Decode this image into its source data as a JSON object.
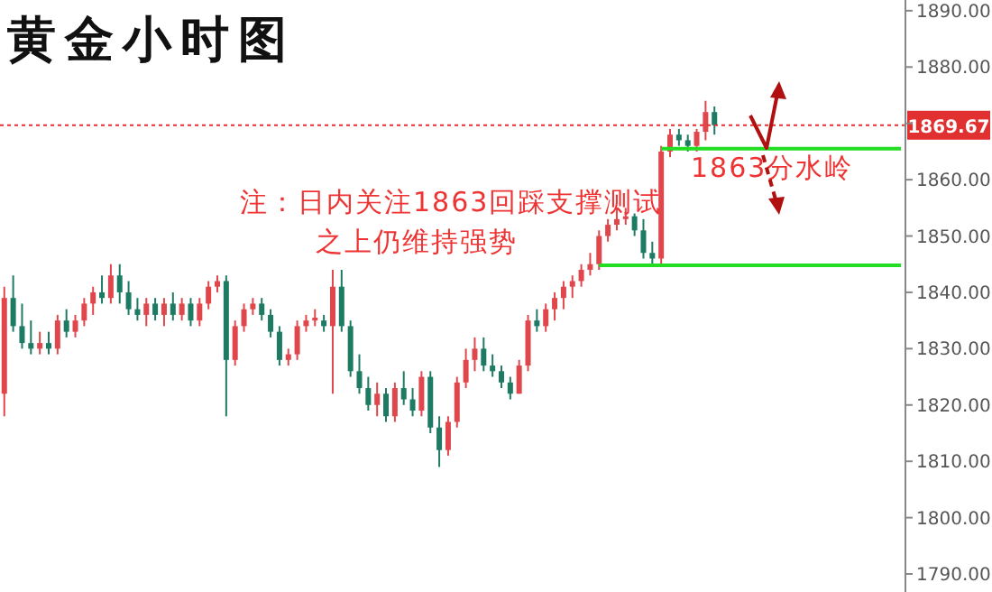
{
  "chart_data": {
    "type": "candlestick",
    "title": "黄金小时图",
    "annotations": [
      "注：日内关注1863回踩支撑测试",
      "之上仍维持强势",
      "1863分水岭"
    ],
    "categories": [
      null,
      null,
      null,
      null,
      null,
      null,
      null,
      null,
      null,
      null,
      null,
      null,
      null,
      null,
      null,
      null,
      null,
      null,
      null,
      null,
      null,
      null,
      null,
      null,
      null,
      null,
      null,
      null,
      null,
      null,
      null,
      null,
      null,
      null,
      null,
      null,
      null,
      null,
      null,
      null,
      null,
      null,
      null,
      null,
      null,
      null,
      null,
      null,
      null,
      null,
      null,
      null,
      null,
      null,
      null,
      null,
      null,
      null,
      null,
      null,
      null,
      null,
      null,
      null,
      null,
      null,
      null,
      null,
      null,
      null,
      null,
      null,
      null,
      null,
      null,
      null,
      null,
      null,
      null,
      null,
      null,
      null,
      null,
      null,
      null,
      null,
      null,
      null,
      null,
      null,
      null,
      null,
      null,
      null,
      null,
      null,
      null,
      null,
      null,
      null,
      null,
      null
    ],
    "ohlc": [
      [
        1822,
        1841,
        1818,
        1839
      ],
      [
        1839,
        1843,
        1833,
        1834
      ],
      [
        1834,
        1838,
        1830,
        1831
      ],
      [
        1831,
        1835,
        1829,
        1830
      ],
      [
        1830,
        1833,
        1829,
        1831
      ],
      [
        1831,
        1833,
        1829,
        1830
      ],
      [
        1830,
        1836,
        1829,
        1835
      ],
      [
        1835,
        1837,
        1832,
        1833
      ],
      [
        1833,
        1836,
        1832,
        1835
      ],
      [
        1835,
        1839,
        1834,
        1838
      ],
      [
        1838,
        1841,
        1836,
        1840
      ],
      [
        1840,
        1843,
        1838,
        1839
      ],
      [
        1839,
        1845,
        1838,
        1843
      ],
      [
        1843,
        1845,
        1838,
        1840
      ],
      [
        1840,
        1842,
        1836,
        1837
      ],
      [
        1837,
        1839,
        1835,
        1836
      ],
      [
        1836,
        1839,
        1834,
        1838
      ],
      [
        1838,
        1839,
        1835,
        1836
      ],
      [
        1836,
        1839,
        1834,
        1838
      ],
      [
        1838,
        1840,
        1835,
        1836
      ],
      [
        1836,
        1839,
        1835,
        1838
      ],
      [
        1838,
        1839,
        1834,
        1835
      ],
      [
        1835,
        1839,
        1834,
        1838
      ],
      [
        1838,
        1842,
        1837,
        1841
      ],
      [
        1841,
        1843,
        1840,
        1842
      ],
      [
        1842,
        1843,
        1818,
        1828
      ],
      [
        1828,
        1835,
        1827,
        1834
      ],
      [
        1834,
        1838,
        1833,
        1837
      ],
      [
        1837,
        1839,
        1836,
        1838
      ],
      [
        1838,
        1839,
        1835,
        1836
      ],
      [
        1836,
        1837,
        1832,
        1833
      ],
      [
        1833,
        1834,
        1827,
        1828
      ],
      [
        1828,
        1830,
        1827,
        1829
      ],
      [
        1829,
        1835,
        1828,
        1834
      ],
      [
        1834,
        1836,
        1833,
        1835
      ],
      [
        1835,
        1837,
        1834,
        1835.5
      ],
      [
        1835,
        1836,
        1833,
        1834
      ],
      [
        1834,
        1844,
        1822,
        1841
      ],
      [
        1841,
        1844,
        1833,
        1834
      ],
      [
        1834,
        1835,
        1825,
        1826
      ],
      [
        1826,
        1829,
        1822,
        1823
      ],
      [
        1823,
        1825,
        1819,
        1820
      ],
      [
        1820,
        1824,
        1818,
        1822
      ],
      [
        1822,
        1823,
        1817,
        1818
      ],
      [
        1818,
        1824,
        1817,
        1823
      ],
      [
        1823,
        1826,
        1820,
        1821
      ],
      [
        1821,
        1823,
        1818,
        1819
      ],
      [
        1819,
        1826,
        1818,
        1825
      ],
      [
        1825,
        1826,
        1815,
        1816
      ],
      [
        1816,
        1818,
        1809,
        1812
      ],
      [
        1812,
        1818,
        1811,
        1817
      ],
      [
        1817,
        1825,
        1816,
        1824
      ],
      [
        1824,
        1830,
        1823,
        1828
      ],
      [
        1828,
        1832,
        1826,
        1830
      ],
      [
        1830,
        1832,
        1826,
        1827
      ],
      [
        1827,
        1829,
        1825,
        1826
      ],
      [
        1826,
        1827,
        1823,
        1824
      ],
      [
        1824,
        1825,
        1821,
        1822
      ],
      [
        1822,
        1828,
        1822,
        1827
      ],
      [
        1827,
        1836,
        1826,
        1835
      ],
      [
        1835,
        1837,
        1833,
        1834
      ],
      [
        1834,
        1838,
        1833,
        1837
      ],
      [
        1837,
        1840,
        1835,
        1839
      ],
      [
        1839,
        1842,
        1837,
        1841
      ],
      [
        1841,
        1843,
        1839,
        1842
      ],
      [
        1842,
        1845,
        1841,
        1844
      ],
      [
        1844,
        1847,
        1843,
        1845
      ],
      [
        1845,
        1851,
        1844,
        1850
      ],
      [
        1850,
        1853,
        1849,
        1852
      ],
      [
        1852,
        1855,
        1851,
        1853
      ],
      [
        1853,
        1855,
        1852,
        1853.5
      ],
      [
        1853.5,
        1854,
        1850,
        1851
      ],
      [
        1851,
        1853,
        1846,
        1847
      ],
      [
        1847,
        1849,
        1844.5,
        1846
      ],
      [
        1846,
        1866,
        1845,
        1865
      ],
      [
        1865,
        1869,
        1864,
        1868
      ],
      [
        1868,
        1869,
        1866,
        1867
      ],
      [
        1867,
        1868,
        1865,
        1866
      ],
      [
        1866,
        1869,
        1865,
        1868.5
      ],
      [
        1868.5,
        1874,
        1867,
        1872
      ],
      [
        1872,
        1873,
        1868,
        1869.67
      ],
      null,
      null,
      null,
      null,
      null,
      null,
      null,
      null,
      null,
      null,
      null,
      null,
      null,
      null,
      null,
      null,
      null,
      null,
      null,
      null,
      null
    ],
    "colors": [
      "#e0474c",
      "#1e7b63",
      "#1e7b63",
      "#1e7b63",
      "#e0474c",
      "#1e7b63",
      "#e0474c",
      "#1e7b63",
      "#e0474c",
      "#e0474c",
      "#e0474c",
      "#1e7b63",
      "#e0474c",
      "#1e7b63",
      "#1e7b63",
      "#1e7b63",
      "#e0474c",
      "#1e7b63",
      "#e0474c",
      "#1e7b63",
      "#e0474c",
      "#1e7b63",
      "#e0474c",
      "#e0474c",
      "#e0474c",
      "#1e7b63",
      "#e0474c",
      "#e0474c",
      "#e0474c",
      "#1e7b63",
      "#1e7b63",
      "#1e7b63",
      "#e0474c",
      "#e0474c",
      "#e0474c",
      "#e0474c",
      "#1e7b63",
      "#e0474c",
      "#1e7b63",
      "#1e7b63",
      "#1e7b63",
      "#1e7b63",
      "#e0474c",
      "#1e7b63",
      "#e0474c",
      "#1e7b63",
      "#1e7b63",
      "#e0474c",
      "#1e7b63",
      "#1e7b63",
      "#e0474c",
      "#e0474c",
      "#e0474c",
      "#e0474c",
      "#1e7b63",
      "#1e7b63",
      "#1e7b63",
      "#1e7b63",
      "#e0474c",
      "#e0474c",
      "#1e7b63",
      "#e0474c",
      "#e0474c",
      "#e0474c",
      "#e0474c",
      "#e0474c",
      "#e0474c",
      "#e0474c",
      "#e0474c",
      "#e0474c",
      "#e0474c",
      "#1e7b63",
      "#1e7b63",
      "#1e7b63",
      "#e0474c",
      "#e0474c",
      "#1e7b63",
      "#1e7b63",
      "#e0474c",
      "#e0474c",
      "#1e7b63",
      null,
      null,
      null,
      null,
      null,
      null,
      null,
      null,
      null,
      null,
      null,
      null,
      null,
      null,
      null,
      null,
      null,
      null,
      null,
      null,
      null
    ],
    "series": [
      {
        "type": "line",
        "color": "#22dd22",
        "values": [
          null,
          null,
          null,
          null,
          null,
          null,
          null,
          null,
          null,
          null,
          null,
          null,
          null,
          null,
          null,
          null,
          null,
          null,
          null,
          null,
          null,
          null,
          null,
          null,
          null,
          null,
          null,
          null,
          null,
          null,
          null,
          null,
          null,
          null,
          null,
          null,
          null,
          null,
          null,
          null,
          null,
          null,
          null,
          null,
          null,
          null,
          null,
          null,
          null,
          null,
          null,
          null,
          null,
          null,
          null,
          null,
          null,
          null,
          null,
          null,
          null,
          null,
          null,
          null,
          null,
          null,
          null,
          null,
          null,
          null,
          null,
          null,
          null,
          null,
          1865.5,
          1865.5,
          1865.5,
          1865.5,
          1865.5,
          1865.5,
          1865.5,
          1865.5,
          1865.5,
          1865.5,
          1865.5,
          1865.5,
          1865.5,
          1865.5,
          1865.5,
          1865.5,
          1865.5,
          1865.5,
          1865.5,
          1865.5,
          1865.5,
          1865.5,
          1865.5,
          1865.5,
          1865.5,
          1865.5,
          1865.5,
          1865.5
        ]
      },
      {
        "type": "line",
        "color": "#22dd22",
        "values": [
          null,
          null,
          null,
          null,
          null,
          null,
          null,
          null,
          null,
          null,
          null,
          null,
          null,
          null,
          null,
          null,
          null,
          null,
          null,
          null,
          null,
          null,
          null,
          null,
          null,
          null,
          null,
          null,
          null,
          null,
          null,
          null,
          null,
          null,
          null,
          null,
          null,
          null,
          null,
          null,
          null,
          null,
          null,
          null,
          null,
          null,
          null,
          null,
          null,
          null,
          null,
          null,
          null,
          null,
          null,
          null,
          null,
          null,
          null,
          null,
          null,
          null,
          null,
          null,
          null,
          null,
          null,
          1844.8,
          1844.8,
          1844.8,
          1844.8,
          1844.8,
          1844.8,
          1844.8,
          1844.8,
          1844.8,
          1844.8,
          1844.8,
          1844.8,
          1844.8,
          1844.8,
          1844.8,
          1844.8,
          1844.8,
          1844.8,
          1844.8,
          1844.8,
          1844.8,
          1844.8,
          1844.8,
          1844.8,
          1844.8,
          1844.8,
          1844.8,
          1844.8,
          1844.8,
          1844.8,
          1844.8,
          1844.8,
          1844.8,
          1844.8,
          1844.8
        ]
      }
    ],
    "ref_lines": [
      {
        "axis": "y",
        "value": 1869.67,
        "label": "1869.67",
        "color": "#e03030",
        "line_style": "dotted"
      }
    ],
    "ylim": [
      1786.8,
      1891.9
    ],
    "yticks": [
      {
        "value": 1790,
        "label": "1790.00"
      },
      {
        "value": 1800,
        "label": "1800.00"
      },
      {
        "value": 1810,
        "label": "1810.00"
      },
      {
        "value": 1820,
        "label": "1820.00"
      },
      {
        "value": 1830,
        "label": "1830.00"
      },
      {
        "value": 1840,
        "label": "1840.00"
      },
      {
        "value": 1850,
        "label": "1850.00"
      },
      {
        "value": 1860,
        "label": "1860.00"
      },
      {
        "value": 1870,
        "label": null
      },
      {
        "value": 1880,
        "label": "1880.00"
      },
      {
        "value": 1890,
        "label": "1890.00"
      }
    ],
    "tick_labels": "y",
    "grid": false,
    "legend": false
  }
}
